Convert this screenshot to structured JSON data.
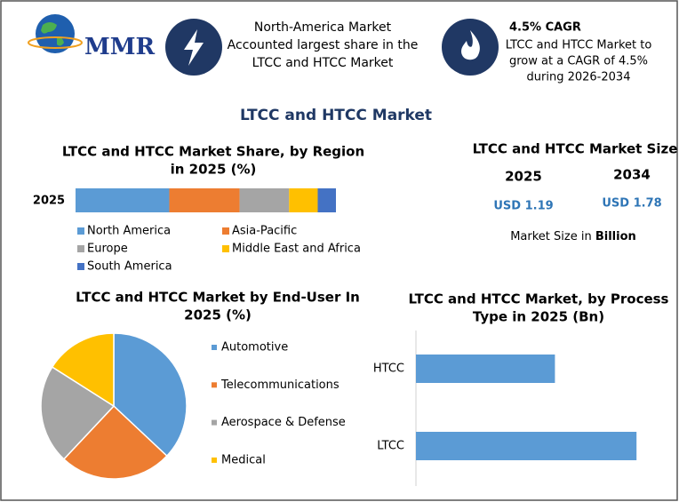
{
  "header": {
    "logo": "MMR",
    "box1": [
      "North-America Market",
      "Accounted largest share in the",
      "LTCC and HTCC Market"
    ],
    "box2_title": "4.5% CAGR",
    "box2": [
      "LTCC and HTCC Market to",
      "grow at a CAGR of 4.5%",
      "during 2026-2034"
    ]
  },
  "main_title": "LTCC and HTCC Market",
  "market_size": {
    "title": "LTCC and HTCC Market Size",
    "years": [
      "2025",
      "2034"
    ],
    "values": [
      "USD 1.19",
      "USD 1.78"
    ],
    "note": "Market Size in",
    "note_unit": "Billion"
  },
  "chart_data": [
    {
      "type": "stacked_bar",
      "title": [
        "LTCC and HTCC Market Share, by Region",
        "in 2025 (%)"
      ],
      "categories": [
        "2025"
      ],
      "xlim": [
        0,
        100
      ],
      "series": [
        {
          "name": "North America",
          "color": "#5b9bd5",
          "values": [
            36
          ]
        },
        {
          "name": "Asia-Pacific",
          "color": "#ed7d31",
          "values": [
            27
          ]
        },
        {
          "name": "Europe",
          "color": "#a5a5a5",
          "values": [
            19
          ]
        },
        {
          "name": "Middle East and Africa",
          "color": "#ffc000",
          "values": [
            11
          ]
        },
        {
          "name": "South America",
          "color": "#4472c4",
          "values": [
            7
          ]
        }
      ]
    },
    {
      "type": "pie",
      "title": [
        "LTCC and HTCC Market by End-User In",
        "2025 (%)"
      ],
      "categories": [
        "Automotive",
        "Telecommunications",
        "Aerospace & Defense",
        "Medical"
      ],
      "values": [
        37,
        25,
        22,
        16
      ],
      "colors": [
        "#5b9bd5",
        "#ed7d31",
        "#a5a5a5",
        "#ffc000"
      ]
    },
    {
      "type": "hbar",
      "title": [
        "LTCC and HTCC Market, by Process",
        "Type in 2025 (Bn)"
      ],
      "categories": [
        "HTCC",
        "LTCC"
      ],
      "values": [
        0.46,
        0.73
      ],
      "color": "#5b9bd5",
      "xlim": [
        0,
        0.8
      ]
    }
  ]
}
